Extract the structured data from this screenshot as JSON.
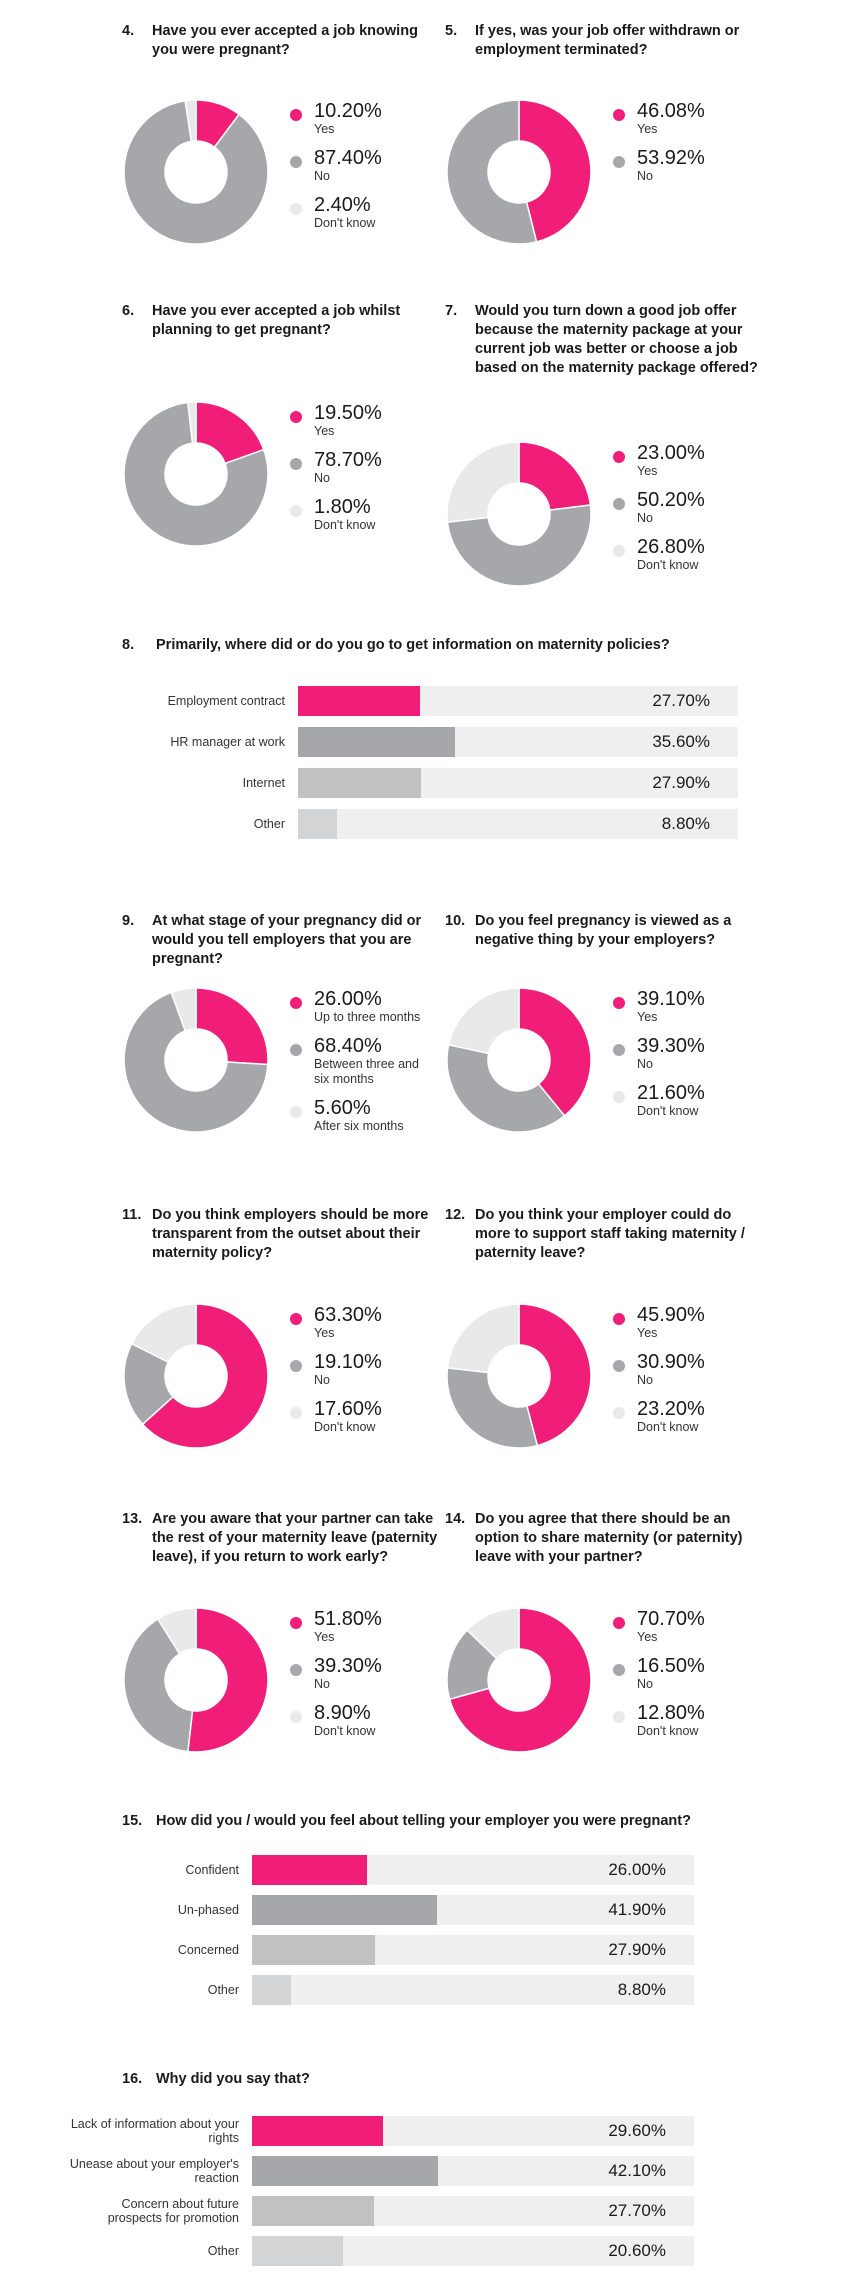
{
  "colors": {
    "yes": "#f01e78",
    "no": "#a6a7aa",
    "dont_know": "#e9e9ea",
    "track": "#efeff0",
    "bar_other": "#d3d4d6",
    "bar_mid": "#c0c1c3"
  },
  "q4": {
    "num": "4.",
    "title": "Have you ever accepted a job knowing you were pregnant?",
    "items": [
      {
        "value": "10.20%",
        "label": "Yes",
        "pct": 10.2,
        "color": "yes"
      },
      {
        "value": "87.40%",
        "label": "No",
        "pct": 87.4,
        "color": "no"
      },
      {
        "value": "2.40%",
        "label": "Don't know",
        "pct": 2.4,
        "color": "dont_know"
      }
    ]
  },
  "q5": {
    "num": "5.",
    "title": "If yes, was your job offer withdrawn or employment terminated?",
    "items": [
      {
        "value": "46.08%",
        "label": "Yes",
        "pct": 46.08,
        "color": "yes"
      },
      {
        "value": "53.92%",
        "label": "No",
        "pct": 53.92,
        "color": "no"
      }
    ]
  },
  "q6": {
    "num": "6.",
    "title": "Have you ever accepted a job whilst planning to get pregnant?",
    "items": [
      {
        "value": "19.50%",
        "label": "Yes",
        "pct": 19.5,
        "color": "yes"
      },
      {
        "value": "78.70%",
        "label": "No",
        "pct": 78.7,
        "color": "no"
      },
      {
        "value": "1.80%",
        "label": "Don't know",
        "pct": 1.8,
        "color": "dont_know"
      }
    ]
  },
  "q7": {
    "num": "7.",
    "title": "Would you turn down a good job offer because the maternity package at your current job was better or choose a job based on the maternity package offered?",
    "items": [
      {
        "value": "23.00%",
        "label": "Yes",
        "pct": 23.0,
        "color": "yes"
      },
      {
        "value": "50.20%",
        "label": "No",
        "pct": 50.2,
        "color": "no"
      },
      {
        "value": "26.80%",
        "label": "Don't know",
        "pct": 26.8,
        "color": "dont_know"
      }
    ]
  },
  "q8": {
    "num": "8.",
    "title": "Primarily, where did or do you go to get information on maternity policies?",
    "rows": [
      {
        "label": "Employment contract",
        "value": "27.70%",
        "pct": 27.7,
        "color": "yes"
      },
      {
        "label": "HR manager at work",
        "value": "35.60%",
        "pct": 35.6,
        "color": "no"
      },
      {
        "label": "Internet",
        "value": "27.90%",
        "pct": 27.9,
        "color": "bar_mid"
      },
      {
        "label": "Other",
        "value": "8.80%",
        "pct": 8.8,
        "color": "bar_other"
      }
    ]
  },
  "q9": {
    "num": "9.",
    "title": "At what stage of your pregnancy did or would you tell employers that you are pregnant?",
    "items": [
      {
        "value": "26.00%",
        "label": "Up to three months",
        "pct": 26.0,
        "color": "yes"
      },
      {
        "value": "68.40%",
        "label": "Between three and six months",
        "pct": 68.4,
        "color": "no"
      },
      {
        "value": "5.60%",
        "label": "After six months",
        "pct": 5.6,
        "color": "dont_know"
      }
    ]
  },
  "q10": {
    "num": "10.",
    "title": "Do you feel pregnancy is viewed as a negative thing by your employers?",
    "items": [
      {
        "value": "39.10%",
        "label": "Yes",
        "pct": 39.1,
        "color": "yes"
      },
      {
        "value": "39.30%",
        "label": "No",
        "pct": 39.3,
        "color": "no"
      },
      {
        "value": "21.60%",
        "label": "Don't know",
        "pct": 21.6,
        "color": "dont_know"
      }
    ]
  },
  "q11": {
    "num": "11.",
    "title": "Do you think employers should be more transparent from the outset about their maternity policy?",
    "items": [
      {
        "value": "63.30%",
        "label": "Yes",
        "pct": 63.3,
        "color": "yes"
      },
      {
        "value": "19.10%",
        "label": "No",
        "pct": 19.1,
        "color": "no"
      },
      {
        "value": "17.60%",
        "label": "Don't know",
        "pct": 17.6,
        "color": "dont_know"
      }
    ]
  },
  "q12": {
    "num": "12.",
    "title": "Do you think your employer could do more to support staff taking maternity / paternity leave?",
    "items": [
      {
        "value": "45.90%",
        "label": "Yes",
        "pct": 45.9,
        "color": "yes"
      },
      {
        "value": "30.90%",
        "label": "No",
        "pct": 30.9,
        "color": "no"
      },
      {
        "value": "23.20%",
        "label": "Don't know",
        "pct": 23.2,
        "color": "dont_know"
      }
    ]
  },
  "q13": {
    "num": "13.",
    "title": "Are you aware that your partner can take the rest of your maternity leave (paternity leave), if you return to work early?",
    "items": [
      {
        "value": "51.80%",
        "label": "Yes",
        "pct": 51.8,
        "color": "yes"
      },
      {
        "value": "39.30%",
        "label": "No",
        "pct": 39.3,
        "color": "no"
      },
      {
        "value": "8.90%",
        "label": "Don't know",
        "pct": 8.9,
        "color": "dont_know"
      }
    ]
  },
  "q14": {
    "num": "14.",
    "title": "Do you agree that there should be an option to share maternity (or paternity) leave with your partner?",
    "items": [
      {
        "value": "70.70%",
        "label": "Yes",
        "pct": 70.7,
        "color": "yes"
      },
      {
        "value": "16.50%",
        "label": "No",
        "pct": 16.5,
        "color": "no"
      },
      {
        "value": "12.80%",
        "label": "Don't know",
        "pct": 12.8,
        "color": "dont_know"
      }
    ]
  },
  "q15": {
    "num": "15.",
    "title": "How did you / would you feel about telling your employer you were pregnant?",
    "rows": [
      {
        "label": "Confident",
        "value": "26.00%",
        "pct": 26.0,
        "color": "yes"
      },
      {
        "label": "Un-phased",
        "value": "41.90%",
        "pct": 41.9,
        "color": "no"
      },
      {
        "label": "Concerned",
        "value": "27.90%",
        "pct": 27.9,
        "color": "bar_mid"
      },
      {
        "label": "Other",
        "value": "8.80%",
        "pct": 8.8,
        "color": "bar_other"
      }
    ]
  },
  "q16": {
    "num": "16.",
    "title": "Why did you say that?",
    "rows": [
      {
        "label": "Lack of information about your rights",
        "value": "29.60%",
        "pct": 29.6,
        "color": "yes"
      },
      {
        "label": "Unease about your employer's reaction",
        "value": "42.10%",
        "pct": 42.1,
        "color": "no"
      },
      {
        "label": "Concern about future prospects for promotion",
        "value": "27.70%",
        "pct": 27.7,
        "color": "bar_mid"
      },
      {
        "label": "Other",
        "value": "20.60%",
        "pct": 20.6,
        "color": "bar_other"
      }
    ]
  },
  "chart_data": [
    {
      "type": "pie",
      "title": "Have you ever accepted a job knowing you were pregnant?",
      "categories": [
        "Yes",
        "No",
        "Don't know"
      ],
      "values": [
        10.2,
        87.4,
        2.4
      ]
    },
    {
      "type": "pie",
      "title": "If yes, was your job offer withdrawn or employment terminated?",
      "categories": [
        "Yes",
        "No"
      ],
      "values": [
        46.08,
        53.92
      ]
    },
    {
      "type": "pie",
      "title": "Have you ever accepted a job whilst planning to get pregnant?",
      "categories": [
        "Yes",
        "No",
        "Don't know"
      ],
      "values": [
        19.5,
        78.7,
        1.8
      ]
    },
    {
      "type": "pie",
      "title": "Would you turn down a good job offer because the maternity package at your current job was better or choose a job based on the maternity package offered?",
      "categories": [
        "Yes",
        "No",
        "Don't know"
      ],
      "values": [
        23.0,
        50.2,
        26.8
      ]
    },
    {
      "type": "bar",
      "title": "Primarily, where did or do you go to get information on maternity policies?",
      "categories": [
        "Employment contract",
        "HR manager at work",
        "Internet",
        "Other"
      ],
      "values": [
        27.7,
        35.6,
        27.9,
        8.8
      ]
    },
    {
      "type": "pie",
      "title": "At what stage of your pregnancy did or would you tell employers that you are pregnant?",
      "categories": [
        "Up to three months",
        "Between three and six months",
        "After six months"
      ],
      "values": [
        26.0,
        68.4,
        5.6
      ]
    },
    {
      "type": "pie",
      "title": "Do you feel pregnancy is viewed as a negative thing by your employers?",
      "categories": [
        "Yes",
        "No",
        "Don't know"
      ],
      "values": [
        39.1,
        39.3,
        21.6
      ]
    },
    {
      "type": "pie",
      "title": "Do you think employers should be more transparent from the outset about their maternity policy?",
      "categories": [
        "Yes",
        "No",
        "Don't know"
      ],
      "values": [
        63.3,
        19.1,
        17.6
      ]
    },
    {
      "type": "pie",
      "title": "Do you think your employer could do more to support staff taking maternity / paternity leave?",
      "categories": [
        "Yes",
        "No",
        "Don't know"
      ],
      "values": [
        45.9,
        30.9,
        23.2
      ]
    },
    {
      "type": "pie",
      "title": "Are you aware that your partner can take the rest of your maternity leave (paternity leave), if you return to work early?",
      "categories": [
        "Yes",
        "No",
        "Don't know"
      ],
      "values": [
        51.8,
        39.3,
        8.9
      ]
    },
    {
      "type": "pie",
      "title": "Do you agree that there should be an option to share maternity (or paternity) leave with your partner?",
      "categories": [
        "Yes",
        "No",
        "Don't know"
      ],
      "values": [
        70.7,
        16.5,
        12.8
      ]
    },
    {
      "type": "bar",
      "title": "How did you / would you feel about telling your employer you were pregnant?",
      "categories": [
        "Confident",
        "Un-phased",
        "Concerned",
        "Other"
      ],
      "values": [
        26.0,
        41.9,
        27.9,
        8.8
      ]
    },
    {
      "type": "bar",
      "title": "Why did you say that?",
      "categories": [
        "Lack of information about your rights",
        "Unease about your employer's reaction",
        "Concern about future prospects for promotion",
        "Other"
      ],
      "values": [
        29.6,
        42.1,
        27.7,
        20.6
      ]
    }
  ]
}
